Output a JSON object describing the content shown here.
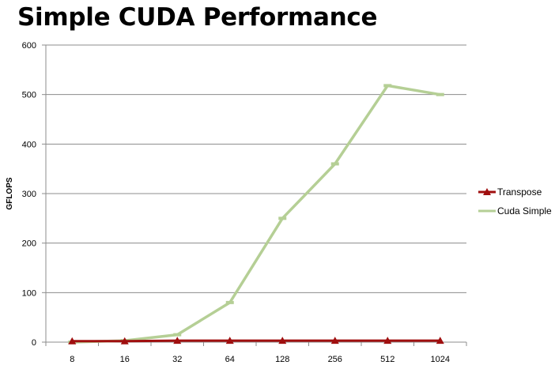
{
  "slide": {
    "title": "Simple CUDA Performance"
  },
  "colors": {
    "transpose": "#a00f0f",
    "cuda_simple": "#b5cf95",
    "gridline": "#8c8c8c",
    "axis": "#8c8c8c"
  },
  "chart_data": {
    "type": "line",
    "title": "",
    "xlabel": "",
    "ylabel": "GFLOPS",
    "categories": [
      "8",
      "16",
      "32",
      "64",
      "128",
      "256",
      "512",
      "1024"
    ],
    "ylim": [
      0,
      600
    ],
    "yticks": [
      "0",
      "100",
      "200",
      "300",
      "400",
      "500",
      "600"
    ],
    "grid": true,
    "legend_position": "right",
    "series": [
      {
        "name": "Transpose",
        "marker": "triangle",
        "color_key": "transpose",
        "values": [
          2,
          2,
          3,
          3,
          3,
          3,
          3,
          3
        ]
      },
      {
        "name": "Cuda Simple",
        "marker": "dash",
        "color_key": "cuda_simple",
        "values": [
          0,
          3,
          15,
          80,
          250,
          360,
          518,
          500
        ]
      }
    ]
  }
}
